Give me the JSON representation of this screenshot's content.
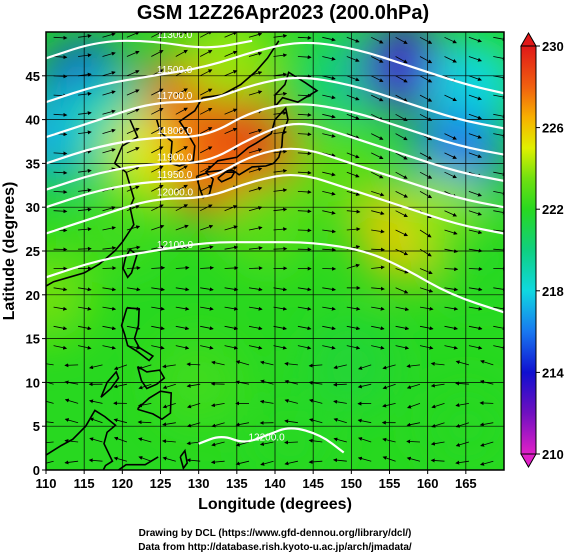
{
  "chart_data": {
    "type": "heatmap",
    "title": "GSM 12Z26Apr2023 (200.0hPa)",
    "xlabel": "Longitude (degrees)",
    "ylabel": "Latitude  (degrees)",
    "xlim": [
      110,
      170
    ],
    "ylim": [
      0,
      50
    ],
    "x_ticks": [
      110,
      115,
      120,
      125,
      130,
      135,
      140,
      145,
      150,
      155,
      160,
      165
    ],
    "y_ticks": [
      0,
      5,
      10,
      15,
      20,
      25,
      30,
      35,
      40,
      45
    ],
    "grid": true,
    "colorbar": {
      "placement": "right",
      "min": 210,
      "max": 230,
      "ticks": [
        210,
        214,
        218,
        222,
        226,
        230
      ],
      "stops": [
        {
          "value": 210,
          "color": "#e020c8"
        },
        {
          "value": 212,
          "color": "#7010c0"
        },
        {
          "value": 214,
          "color": "#1010d0"
        },
        {
          "value": 216,
          "color": "#1878f0"
        },
        {
          "value": 218,
          "color": "#10d8e0"
        },
        {
          "value": 220,
          "color": "#10d080"
        },
        {
          "value": 222,
          "color": "#28d820"
        },
        {
          "value": 223.5,
          "color": "#70e010"
        },
        {
          "value": 225,
          "color": "#e0f000"
        },
        {
          "value": 226.5,
          "color": "#f8b000"
        },
        {
          "value": 228,
          "color": "#f06010"
        },
        {
          "value": 230,
          "color": "#e01818"
        }
      ]
    },
    "temperature_blobs": [
      {
        "lon": 110,
        "lat": 20,
        "value": 223.5
      },
      {
        "lon": 130,
        "lat": 10,
        "value": 222.5
      },
      {
        "lon": 150,
        "lat": 12,
        "value": 221.5
      },
      {
        "lon": 165,
        "lat": 5,
        "value": 222
      },
      {
        "lon": 115,
        "lat": 44,
        "value": 215
      },
      {
        "lon": 111,
        "lat": 38,
        "value": 217
      },
      {
        "lon": 118,
        "lat": 40,
        "value": 219
      },
      {
        "lon": 124,
        "lat": 36,
        "value": 225
      },
      {
        "lon": 129,
        "lat": 43,
        "value": 228
      },
      {
        "lon": 135,
        "lat": 40,
        "value": 230
      },
      {
        "lon": 137,
        "lat": 36,
        "value": 230
      },
      {
        "lon": 132,
        "lat": 34,
        "value": 228
      },
      {
        "lon": 134,
        "lat": 47,
        "value": 224
      },
      {
        "lon": 145,
        "lat": 43,
        "value": 222
      },
      {
        "lon": 150,
        "lat": 45,
        "value": 220
      },
      {
        "lon": 157,
        "lat": 46,
        "value": 213
      },
      {
        "lon": 166,
        "lat": 44,
        "value": 218
      },
      {
        "lon": 164,
        "lat": 36,
        "value": 216
      },
      {
        "lon": 157,
        "lat": 27,
        "value": 226
      },
      {
        "lon": 162,
        "lat": 29,
        "value": 224
      },
      {
        "lon": 167,
        "lat": 24,
        "value": 222
      },
      {
        "lon": 139,
        "lat": 28,
        "value": 223
      },
      {
        "lon": 148,
        "lat": 34,
        "value": 223
      },
      {
        "lon": 142,
        "lat": 3,
        "value": 222
      },
      {
        "lon": 120,
        "lat": 28,
        "value": 222.5
      }
    ],
    "height_contours": [
      {
        "label": "11300.0",
        "points": [
          [
            110,
            47
          ],
          [
            117,
            49
          ],
          [
            124,
            49
          ],
          [
            131,
            48
          ],
          [
            137,
            49
          ]
        ]
      },
      {
        "label": "11500.0",
        "points": [
          [
            110,
            42
          ],
          [
            117,
            44
          ],
          [
            124,
            45
          ],
          [
            131,
            46
          ],
          [
            138,
            48
          ],
          [
            144,
            49
          ],
          [
            151,
            48
          ],
          [
            158,
            46
          ],
          [
            165,
            44
          ],
          [
            170,
            43
          ]
        ]
      },
      {
        "label": "11700.0",
        "points": [
          [
            110,
            38
          ],
          [
            117,
            40
          ],
          [
            124,
            42
          ],
          [
            131,
            42
          ],
          [
            137,
            44
          ],
          [
            143,
            45
          ],
          [
            150,
            44
          ],
          [
            157,
            42
          ],
          [
            164,
            40
          ],
          [
            170,
            39
          ]
        ]
      },
      {
        "label": "11800.0",
        "points": [
          [
            110,
            35
          ],
          [
            117,
            37
          ],
          [
            124,
            38
          ],
          [
            131,
            38
          ],
          [
            137,
            41
          ],
          [
            143,
            42
          ],
          [
            150,
            41
          ],
          [
            157,
            39
          ],
          [
            164,
            37
          ],
          [
            170,
            36
          ]
        ]
      },
      {
        "label": "11900.0",
        "points": [
          [
            110,
            32
          ],
          [
            117,
            34
          ],
          [
            124,
            35
          ],
          [
            131,
            35
          ],
          [
            137,
            38
          ],
          [
            143,
            40
          ],
          [
            150,
            38
          ],
          [
            157,
            36
          ],
          [
            164,
            34
          ],
          [
            170,
            33
          ]
        ]
      },
      {
        "label": "11950.0",
        "points": [
          [
            110,
            30
          ],
          [
            117,
            32
          ],
          [
            124,
            33
          ],
          [
            131,
            33
          ],
          [
            137,
            36
          ],
          [
            143,
            37
          ],
          [
            150,
            35
          ],
          [
            157,
            33
          ],
          [
            164,
            31
          ],
          [
            170,
            30
          ]
        ]
      },
      {
        "label": "12000.0",
        "points": [
          [
            110,
            27
          ],
          [
            117,
            29
          ],
          [
            124,
            31
          ],
          [
            131,
            31
          ],
          [
            137,
            33
          ],
          [
            143,
            34
          ],
          [
            150,
            32
          ],
          [
            157,
            30
          ],
          [
            164,
            28
          ],
          [
            170,
            27
          ]
        ]
      },
      {
        "label": "12100.0",
        "points": [
          [
            110,
            22
          ],
          [
            117,
            24
          ],
          [
            124,
            25
          ],
          [
            131,
            26
          ],
          [
            138,
            26
          ],
          [
            145,
            26
          ],
          [
            152,
            25
          ],
          [
            157,
            23
          ],
          [
            163,
            20
          ],
          [
            170,
            18
          ]
        ]
      },
      {
        "label": "12200.0",
        "points": [
          [
            130,
            3
          ],
          [
            133,
            4
          ],
          [
            136,
            3
          ],
          [
            139,
            4
          ],
          [
            142,
            5
          ],
          [
            146,
            4
          ],
          [
            149,
            2
          ]
        ]
      }
    ],
    "streamlines": {
      "style": "arrows",
      "color": "#000000"
    }
  },
  "credits": {
    "line1": "Drawing by DCL (https://www.gfd-dennou.org/library/dcl/)",
    "line2": "Data from http://database.rish.kyoto-u.ac.jp/arch/jmadata/"
  }
}
